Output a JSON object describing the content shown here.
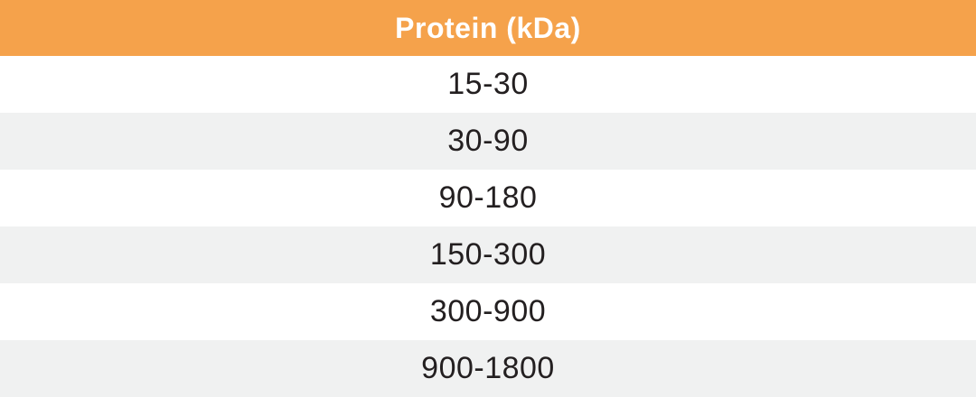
{
  "table": {
    "header": {
      "label": "Protein (kDa)"
    },
    "rows": [
      {
        "value": "15-30"
      },
      {
        "value": "30-90"
      },
      {
        "value": "90-180"
      },
      {
        "value": "150-300"
      },
      {
        "value": "300-900"
      },
      {
        "value": "900-1800"
      }
    ]
  },
  "colors": {
    "header_background": "#F5A24B",
    "header_text": "#FFFFFF",
    "row_stripe": "#F0F1F1",
    "row_text": "#231F20"
  }
}
